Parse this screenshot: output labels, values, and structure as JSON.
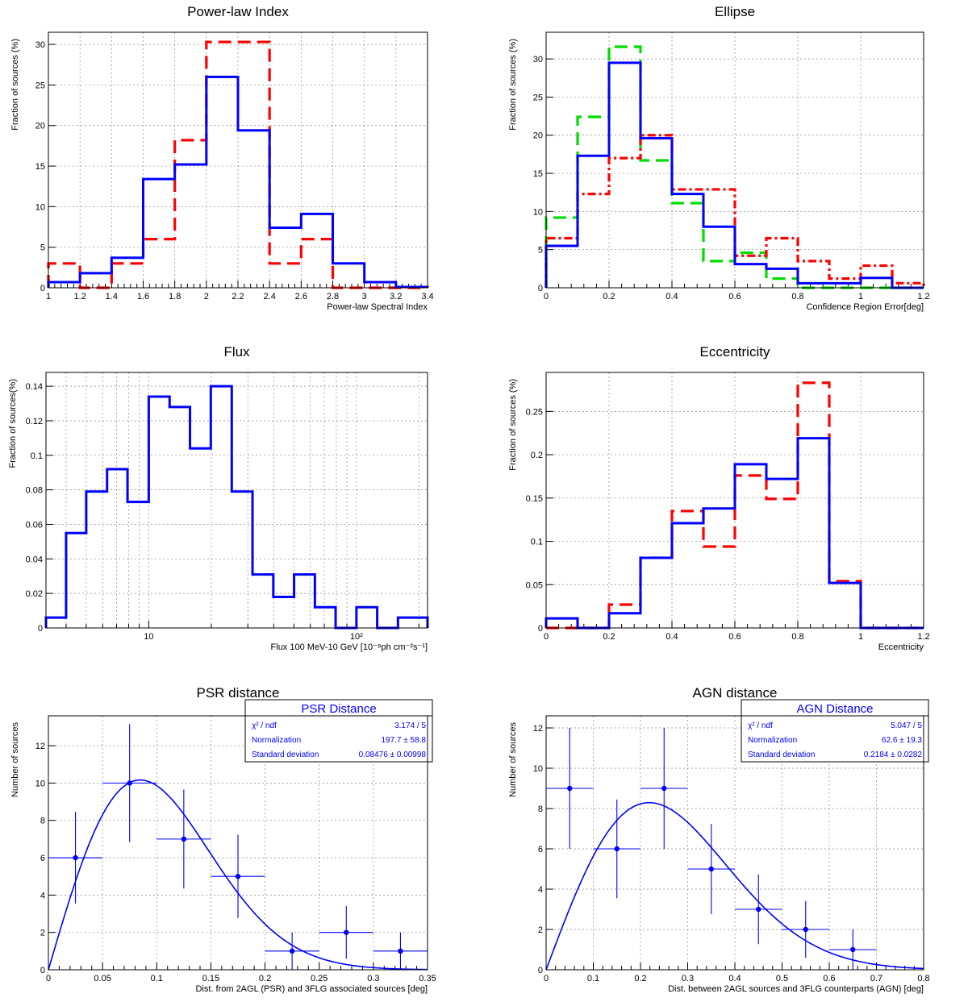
{
  "figure": {
    "description_panels": 6
  },
  "chart_data": [
    {
      "type": "histogram",
      "title": "Power-law Index",
      "xlabel": "Power-law Spectral Index",
      "ylabel": "Fraction of sources (%)",
      "xlim": [
        1,
        3.4
      ],
      "ylim": [
        0,
        31.5
      ],
      "xticks": [
        1,
        1.2,
        1.4,
        1.6,
        1.8,
        2,
        2.2,
        2.4,
        2.6,
        2.8,
        3,
        3.2,
        3.4
      ],
      "xtick_labels": [
        "1",
        "1.2",
        "1.4",
        "1.6",
        "1.8",
        "2",
        "2.2",
        "2.4",
        "2.6",
        "2.8",
        "3",
        "3.2",
        "3.4"
      ],
      "yticks": [
        0,
        5,
        10,
        15,
        20,
        25,
        30
      ],
      "ytick_labels": [
        "0",
        "5",
        "10",
        "15",
        "20",
        "25",
        "30"
      ],
      "bin_edges": [
        1,
        1.2,
        1.4,
        1.6,
        1.8,
        2,
        2.2,
        2.4,
        2.6,
        2.8,
        3,
        3.2,
        3.4
      ],
      "series": [
        {
          "name": "red",
          "color": "#ff0000",
          "style": "dashed",
          "values": [
            3,
            0,
            3,
            6,
            18.2,
            30.3,
            30.3,
            3,
            6,
            0,
            0,
            0
          ]
        },
        {
          "name": "blue",
          "color": "#0000ff",
          "style": "solid",
          "values": [
            0.7,
            1.8,
            3.7,
            13.4,
            15.2,
            26,
            19.4,
            7.4,
            9.1,
            3,
            0.7,
            0.1
          ]
        }
      ]
    },
    {
      "type": "histogram",
      "title": "Ellipse",
      "xlabel": "Confidence Region Error[deg]",
      "ylabel": "Fraction of sources (%)",
      "xlim": [
        0,
        1.2
      ],
      "ylim": [
        0,
        33.5
      ],
      "xticks": [
        0,
        0.2,
        0.4,
        0.6,
        0.8,
        1,
        1.2
      ],
      "xtick_labels": [
        "0",
        "0.2",
        "0.4",
        "0.6",
        "0.8",
        "1",
        "1.2"
      ],
      "yticks": [
        0,
        5,
        10,
        15,
        20,
        25,
        30
      ],
      "ytick_labels": [
        "0",
        "5",
        "10",
        "15",
        "20",
        "25",
        "30"
      ],
      "bin_edges": [
        0,
        0.1,
        0.2,
        0.3,
        0.4,
        0.5,
        0.6,
        0.7,
        0.8,
        0.9,
        1.0,
        1.1,
        1.2
      ],
      "series": [
        {
          "name": "green",
          "color": "#00dd00",
          "style": "dashed",
          "values": [
            9.2,
            22.4,
            31.6,
            16.7,
            11.1,
            3.5,
            4.6,
            1.2,
            0,
            0,
            0,
            0
          ]
        },
        {
          "name": "red",
          "color": "#ff0000",
          "style": "dashdot",
          "values": [
            6.5,
            12.3,
            17,
            20,
            12.9,
            12.9,
            4.2,
            6.5,
            3.5,
            1.2,
            2.9,
            0.6
          ]
        },
        {
          "name": "blue",
          "color": "#0000ff",
          "style": "solid",
          "values": [
            5.5,
            17.3,
            29.5,
            19.6,
            12.3,
            8,
            3.1,
            2.5,
            0.6,
            0.6,
            1.3,
            0
          ]
        }
      ]
    },
    {
      "type": "histogram",
      "title": "Flux",
      "xlabel": "Flux 100 MeV-10 GeV [10⁻⁸ph cm⁻²s⁻¹]",
      "ylabel": "Fraction of sources(%)",
      "xscale": "log",
      "xlim": [
        3.2,
        220
      ],
      "ylim": [
        0,
        0.148
      ],
      "xticks": [
        10,
        100
      ],
      "xtick_labels": [
        "10",
        "10²"
      ],
      "minor_xticks": [
        4,
        5,
        6,
        7,
        8,
        9,
        20,
        30,
        40,
        50,
        60,
        70,
        80,
        90,
        200
      ],
      "yticks": [
        0,
        0.02,
        0.04,
        0.06,
        0.08,
        0.1,
        0.12,
        0.14
      ],
      "ytick_labels": [
        "0",
        "0.02",
        "0.04",
        "0.06",
        "0.08",
        "0.1",
        "0.12",
        "0.14"
      ],
      "bin_edges": [
        3.2,
        4.0,
        5.0,
        6.3,
        7.9,
        10,
        12.6,
        15.8,
        19.9,
        25.1,
        31.6,
        39.8,
        50.1,
        63.1,
        79.4,
        100,
        125.9,
        158.5,
        220
      ],
      "series": [
        {
          "name": "blue",
          "color": "#0000ff",
          "style": "solid",
          "values": [
            0.006,
            0.055,
            0.079,
            0.092,
            0.073,
            0.134,
            0.128,
            0.104,
            0.14,
            0.079,
            0.031,
            0.018,
            0.031,
            0.012,
            0,
            0.012,
            0,
            0.006
          ]
        }
      ]
    },
    {
      "type": "histogram",
      "title": "Eccentricity",
      "xlabel": "Eccentricity",
      "ylabel": "Fraction of sources (%)",
      "xlim": [
        0,
        1.2
      ],
      "ylim": [
        0,
        0.295
      ],
      "xticks": [
        0,
        0.2,
        0.4,
        0.6,
        0.8,
        1,
        1.2
      ],
      "xtick_labels": [
        "0",
        "0.2",
        "0.4",
        "0.6",
        "0.8",
        "1",
        "1.2"
      ],
      "yticks": [
        0,
        0.05,
        0.1,
        0.15,
        0.2,
        0.25
      ],
      "ytick_labels": [
        "0",
        "0.05",
        "0.1",
        "0.15",
        "0.2",
        "0.25"
      ],
      "bin_edges": [
        0,
        0.1,
        0.2,
        0.3,
        0.4,
        0.5,
        0.6,
        0.7,
        0.8,
        0.9,
        1.0,
        1.1,
        1.2
      ],
      "series": [
        {
          "name": "red",
          "color": "#ff0000",
          "style": "dashed",
          "values": [
            0,
            0,
            0.027,
            0.081,
            0.135,
            0.094,
            0.176,
            0.149,
            0.283,
            0.054,
            0,
            0
          ]
        },
        {
          "name": "blue",
          "color": "#0000ff",
          "style": "solid",
          "values": [
            0.011,
            0,
            0.017,
            0.081,
            0.121,
            0.138,
            0.189,
            0.172,
            0.219,
            0.052,
            0,
            0
          ]
        }
      ]
    },
    {
      "type": "scatter",
      "title": "PSR distance",
      "xlabel": "Dist. from 2AGL (PSR) and 3FLG associated sources [deg]",
      "ylabel": "Number of sources",
      "xlim": [
        0,
        0.35
      ],
      "ylim": [
        0,
        13.6
      ],
      "xticks": [
        0,
        0.05,
        0.1,
        0.15,
        0.2,
        0.25,
        0.3,
        0.35
      ],
      "xtick_labels": [
        "0",
        "0.05",
        "0.1",
        "0.15",
        "0.2",
        "0.25",
        "0.3",
        "0.35"
      ],
      "yticks": [
        0,
        2,
        4,
        6,
        8,
        10,
        12
      ],
      "ytick_labels": [
        "0",
        "2",
        "4",
        "6",
        "8",
        "10",
        "12"
      ],
      "points": {
        "x": [
          0.025,
          0.075,
          0.125,
          0.175,
          0.225,
          0.275,
          0.325
        ],
        "y": [
          6,
          10,
          7,
          5,
          1,
          2,
          1
        ],
        "xerr": 0.025,
        "yerr": [
          2.45,
          3.16,
          2.65,
          2.24,
          1,
          1.41,
          1
        ]
      },
      "fit": {
        "normalization": 197.7,
        "sigma": 0.08476,
        "x_range": [
          0,
          0.35
        ]
      },
      "stats": {
        "title": "PSR Distance",
        "rows": [
          {
            "label": "χ² / ndf",
            "value": "3.174 / 5"
          },
          {
            "label": "Normalization",
            "value": "197.7 ± 58.8"
          },
          {
            "label": "Standard deviation",
            "value": "0.08476 ± 0.00998"
          }
        ]
      }
    },
    {
      "type": "scatter",
      "title": "AGN distance",
      "xlabel": "Dist. between 2AGL sources and 3FLG counterparts (AGN) [deg]",
      "ylabel": "Number of sources",
      "xlim": [
        0,
        0.8
      ],
      "ylim": [
        0,
        12.6
      ],
      "xticks": [
        0,
        0.1,
        0.2,
        0.3,
        0.4,
        0.5,
        0.6,
        0.7,
        0.8
      ],
      "xtick_labels": [
        "0",
        "0.1",
        "0.2",
        "0.3",
        "0.4",
        "0.5",
        "0.6",
        "0.7",
        "0.8"
      ],
      "yticks": [
        0,
        2,
        4,
        6,
        8,
        10,
        12
      ],
      "ytick_labels": [
        "0",
        "2",
        "4",
        "6",
        "8",
        "10",
        "12"
      ],
      "points": {
        "x": [
          0.05,
          0.15,
          0.25,
          0.35,
          0.45,
          0.55,
          0.65
        ],
        "y": [
          9,
          6,
          9,
          5,
          3,
          2,
          1
        ],
        "xerr": 0.05,
        "yerr": [
          3,
          2.45,
          3,
          2.24,
          1.73,
          1.41,
          1
        ]
      },
      "fit": {
        "normalization": 62.6,
        "sigma": 0.2184,
        "x_range": [
          0,
          0.8
        ]
      },
      "stats": {
        "title": "AGN Distance",
        "rows": [
          {
            "label": "χ² / ndf",
            "value": "5.047 / 5"
          },
          {
            "label": "Normalization",
            "value": "62.6 ± 19.3"
          },
          {
            "label": "Standard deviation",
            "value": "0.2184 ± 0.0282"
          }
        ]
      }
    }
  ]
}
